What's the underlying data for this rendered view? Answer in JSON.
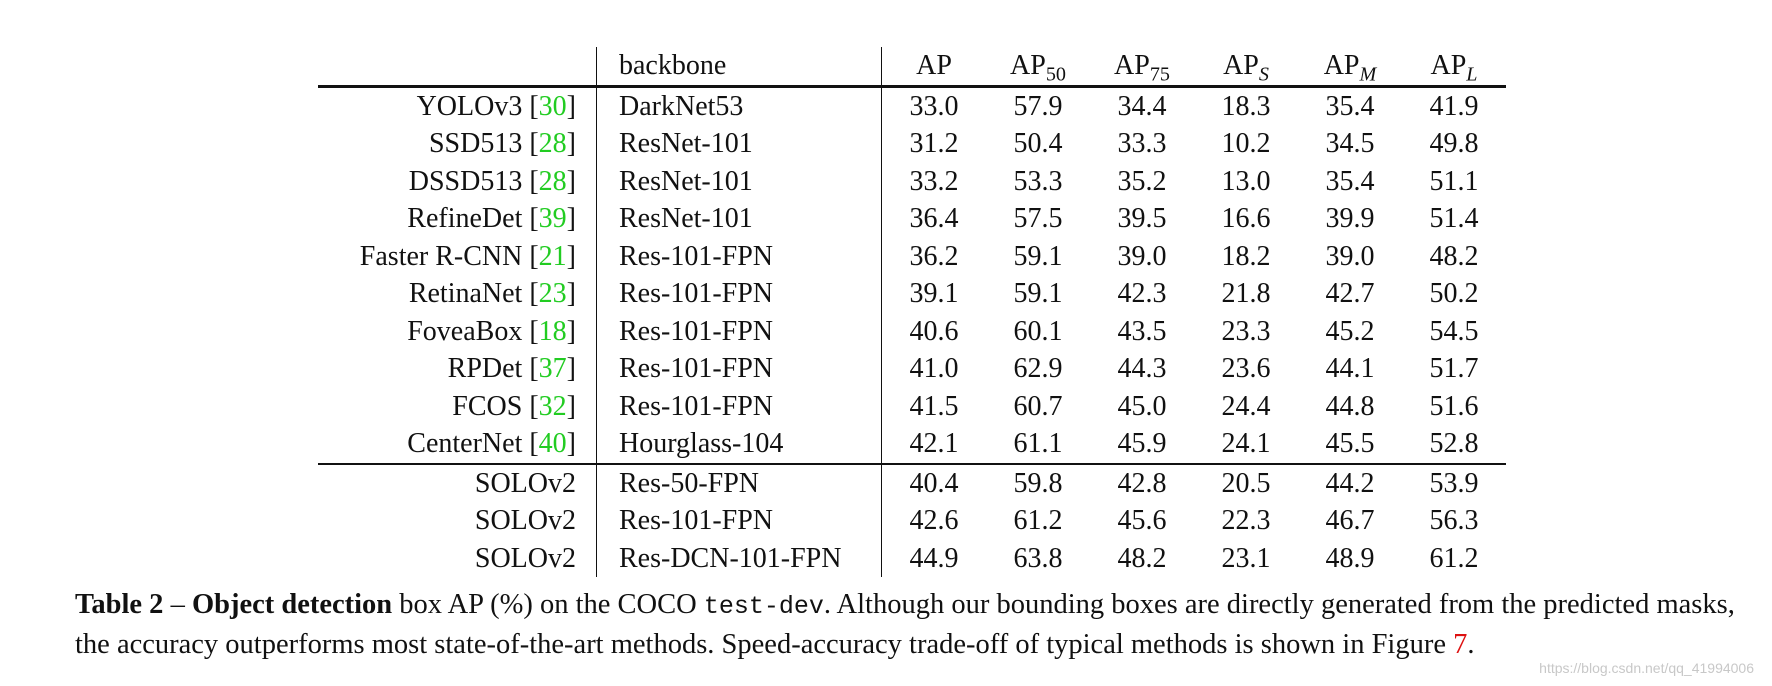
{
  "table": {
    "headers": {
      "method": "",
      "backbone": "backbone",
      "ap": "AP",
      "ap50_base": "AP",
      "ap50_sub": "50",
      "ap75_base": "AP",
      "ap75_sub": "75",
      "aps_base": "AP",
      "aps_sub": "S",
      "apm_base": "AP",
      "apm_sub": "M",
      "apl_base": "AP",
      "apl_sub": "L"
    },
    "rows": [
      {
        "name": "YOLOv3",
        "ref": "30",
        "backbone": "DarkNet53",
        "vals": [
          "33.0",
          "57.9",
          "34.4",
          "18.3",
          "35.4",
          "41.9"
        ]
      },
      {
        "name": "SSD513",
        "ref": "28",
        "backbone": "ResNet-101",
        "vals": [
          "31.2",
          "50.4",
          "33.3",
          "10.2",
          "34.5",
          "49.8"
        ]
      },
      {
        "name": "DSSD513",
        "ref": "28",
        "backbone": "ResNet-101",
        "vals": [
          "33.2",
          "53.3",
          "35.2",
          "13.0",
          "35.4",
          "51.1"
        ]
      },
      {
        "name": "RefineDet",
        "ref": "39",
        "backbone": "ResNet-101",
        "vals": [
          "36.4",
          "57.5",
          "39.5",
          "16.6",
          "39.9",
          "51.4"
        ]
      },
      {
        "name": "Faster R-CNN",
        "ref": "21",
        "backbone": "Res-101-FPN",
        "vals": [
          "36.2",
          "59.1",
          "39.0",
          "18.2",
          "39.0",
          "48.2"
        ]
      },
      {
        "name": "RetinaNet",
        "ref": "23",
        "backbone": "Res-101-FPN",
        "vals": [
          "39.1",
          "59.1",
          "42.3",
          "21.8",
          "42.7",
          "50.2"
        ]
      },
      {
        "name": "FoveaBox",
        "ref": "18",
        "backbone": "Res-101-FPN",
        "vals": [
          "40.6",
          "60.1",
          "43.5",
          "23.3",
          "45.2",
          "54.5"
        ]
      },
      {
        "name": "RPDet",
        "ref": "37",
        "backbone": "Res-101-FPN",
        "vals": [
          "41.0",
          "62.9",
          "44.3",
          "23.6",
          "44.1",
          "51.7"
        ]
      },
      {
        "name": "FCOS",
        "ref": "32",
        "backbone": "Res-101-FPN",
        "vals": [
          "41.5",
          "60.7",
          "45.0",
          "24.4",
          "44.8",
          "51.6"
        ]
      },
      {
        "name": "CenterNet",
        "ref": "40",
        "backbone": "Hourglass-104",
        "vals": [
          "42.1",
          "61.1",
          "45.9",
          "24.1",
          "45.5",
          "52.8"
        ]
      },
      {
        "name": "SOLOv2",
        "backbone": "Res-50-FPN",
        "vals": [
          "40.4",
          "59.8",
          "42.8",
          "20.5",
          "44.2",
          "53.9"
        ]
      },
      {
        "name": "SOLOv2",
        "backbone": "Res-101-FPN",
        "vals": [
          "42.6",
          "61.2",
          "45.6",
          "22.3",
          "46.7",
          "56.3"
        ]
      },
      {
        "name": "SOLOv2",
        "backbone": "Res-DCN-101-FPN",
        "vals": [
          "44.9",
          "63.8",
          "48.2",
          "23.1",
          "48.9",
          "61.2"
        ]
      }
    ]
  },
  "caption": {
    "label": "Table 2",
    "dash": " – ",
    "bold_part": "Object detection",
    "text1": " box AP (%) on the COCO ",
    "mono": "test-dev",
    "text2": ". Although our bounding boxes are directly generated from the predicted masks, the accuracy outperforms most state-of-the-art methods. Speed-accuracy trade-off of typical methods is shown in Figure ",
    "figure_ref": "7",
    "text3": "."
  },
  "watermark": "https://blog.csdn.net/qq_41994006"
}
